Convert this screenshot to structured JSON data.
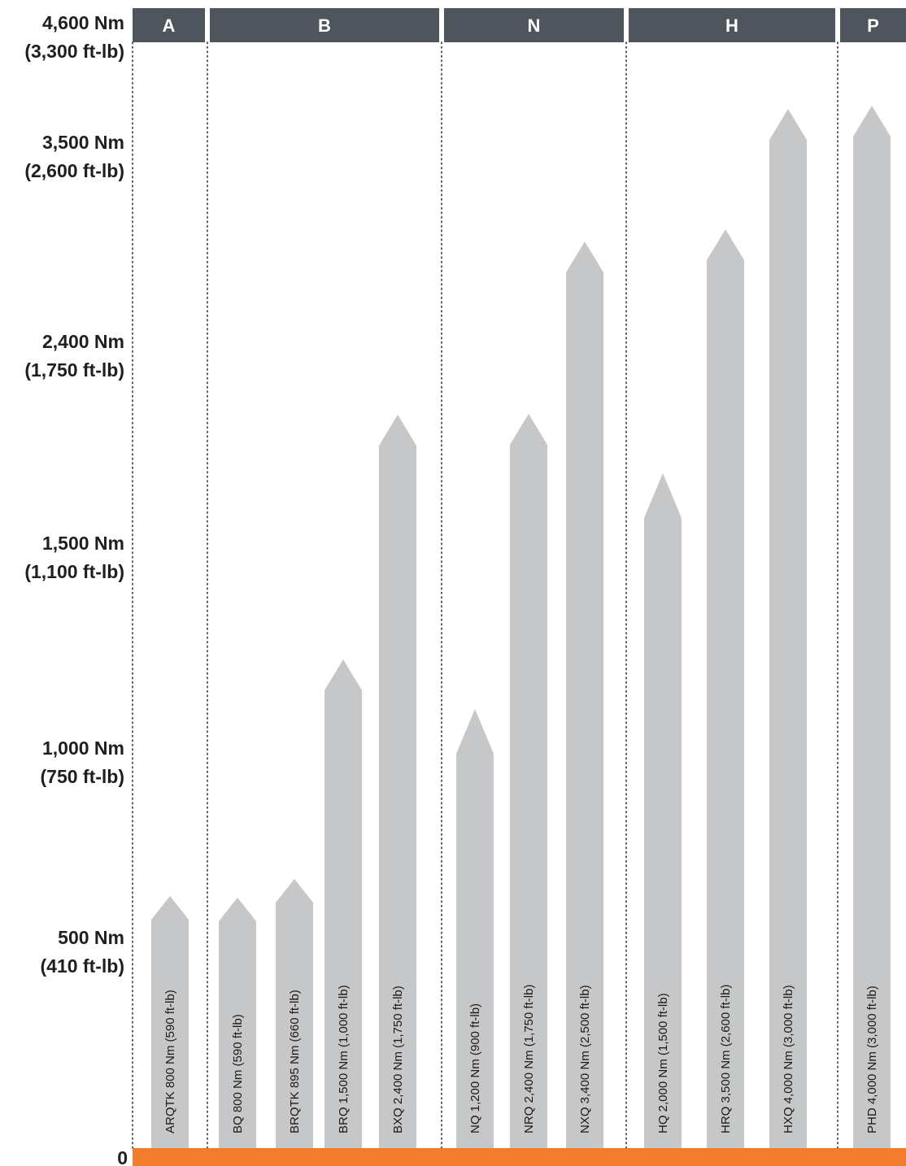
{
  "chart_data": {
    "type": "bar",
    "orientation": "vertical",
    "title": "",
    "xlabel": "",
    "ylabel": "",
    "zero_label": "0",
    "y_ticks": [
      {
        "value": 500,
        "line1": "500 Nm",
        "line2": "(410 ft-lb)"
      },
      {
        "value": 1000,
        "line1": "1,000 Nm",
        "line2": "(750 ft-lb)"
      },
      {
        "value": 1500,
        "line1": "1,500 Nm",
        "line2": "(1,100 ft-lb)"
      },
      {
        "value": 2400,
        "line1": "2,400 Nm",
        "line2": "(1,750 ft-lb)"
      },
      {
        "value": 3500,
        "line1": "3,500 Nm",
        "line2": "(2,600 ft-lb)"
      },
      {
        "value": 4600,
        "line1": "4,600 Nm",
        "line2": "(3,300 ft-lb)"
      }
    ],
    "groups": [
      {
        "name": "A",
        "bars": [
          "ARQTK"
        ]
      },
      {
        "name": "B",
        "bars": [
          "BQ",
          "BRQTK",
          "BRQ",
          "BXQ"
        ]
      },
      {
        "name": "N",
        "bars": [
          "NQ",
          "NRQ",
          "NXQ"
        ]
      },
      {
        "name": "H",
        "bars": [
          "HQ",
          "HRQ",
          "HXQ"
        ]
      },
      {
        "name": "P",
        "bars": [
          "PHD"
        ]
      }
    ],
    "categories": [
      "ARQTK",
      "BQ",
      "BRQTK",
      "BRQ",
      "BXQ",
      "NQ",
      "NRQ",
      "NXQ",
      "HQ",
      "HRQ",
      "HXQ",
      "PHD"
    ],
    "values": [
      800,
      800,
      895,
      1500,
      2400,
      1200,
      2400,
      3400,
      2000,
      3500,
      4000,
      4000
    ],
    "labels": [
      "ARQTK 800 Nm (590 ft-lb)",
      "BQ 800 Nm (590 ft-lb)",
      "BRQTK 895 Nm (660 ft-lb)",
      "BRQ 1,500 Nm (1,000 ft-lb)",
      "BXQ 2,400 Nm (1,750 ft-lb)",
      "NQ 1,200 Nm (900 ft-lb)",
      "NRQ 2,400 Nm (1,750 ft-lb)",
      "NXQ 3,400 Nm (2,500 ft-lb)",
      "HQ 2,000 Nm (1,500 ft-lb)",
      "HRQ 3,500 Nm (2,600 ft-lb)",
      "HXQ 4,000 Nm (3,000 ft-lb)",
      "PHD 4,000 Nm (3,000 ft-lb)"
    ],
    "grid": false,
    "colors": {
      "bar": "#c6c7c9",
      "header": "#4f555d",
      "baseline": "#f07c2c",
      "divider": "#333333"
    }
  }
}
